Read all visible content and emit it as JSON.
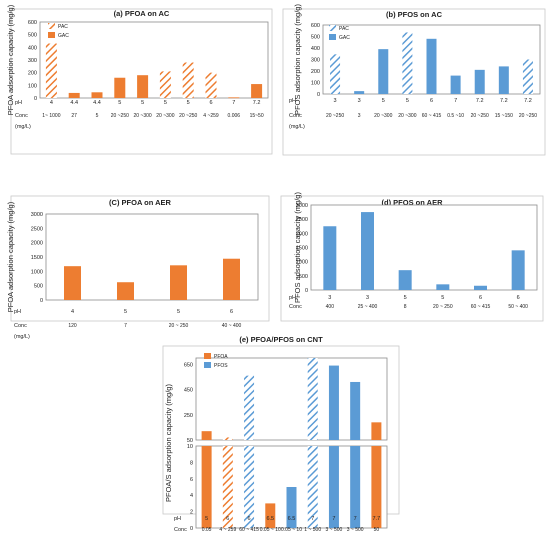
{
  "colors": {
    "orange": "#ED7D31",
    "blue": "#5B9BD5",
    "frame": "#8c8c8c",
    "text": "#222222"
  },
  "labels": {
    "ph": "pH",
    "conc": "Conc",
    "unit": "(mg/L)"
  },
  "chart_data": [
    {
      "id": "a",
      "type": "bar",
      "title": "(a) PFOA on AC",
      "ylabel": "PFOA adsorption capacity (mg/g)",
      "ylim": [
        0,
        600
      ],
      "yticks": [
        "0",
        "100",
        "200",
        "300",
        "400",
        "500",
        "600"
      ],
      "legend": [
        {
          "name": "PAC",
          "pattern": "hatch-orange"
        },
        {
          "name": "GAC",
          "pattern": "solid-orange"
        }
      ],
      "legend_position": "top-left",
      "bars": [
        {
          "ph": "4",
          "conc": "1~ 1000",
          "value": 430,
          "style": "hatch-orange"
        },
        {
          "ph": "4.4",
          "conc": "27",
          "value": 40,
          "style": "solid-orange"
        },
        {
          "ph": "4.4",
          "conc": "5",
          "value": 45,
          "style": "solid-orange"
        },
        {
          "ph": "5",
          "conc": "20 ~250",
          "value": 160,
          "style": "solid-orange"
        },
        {
          "ph": "5",
          "conc": "20 ~300",
          "value": 180,
          "style": "solid-orange"
        },
        {
          "ph": "5",
          "conc": "20 ~300",
          "value": 210,
          "style": "hatch-orange"
        },
        {
          "ph": "5",
          "conc": "20 ~250",
          "value": 280,
          "style": "hatch-orange"
        },
        {
          "ph": "6",
          "conc": "4 ~259",
          "value": 200,
          "style": "hatch-orange"
        },
        {
          "ph": "7",
          "conc": "0.006",
          "value": 5,
          "style": "solid-orange"
        },
        {
          "ph": "7.2",
          "conc": "15~50",
          "value": 110,
          "style": "solid-orange"
        }
      ]
    },
    {
      "id": "b",
      "type": "bar",
      "title": "(b) PFOS on AC",
      "ylabel": "PFOS adsorption capacity (mg/g)",
      "ylim": [
        0,
        600
      ],
      "yticks": [
        "0",
        "100",
        "200",
        "300",
        "400",
        "500",
        "600"
      ],
      "legend": [
        {
          "name": "PAC",
          "pattern": "hatch-blue"
        },
        {
          "name": "GAC",
          "pattern": "solid-blue"
        }
      ],
      "legend_position": "top-left",
      "bars": [
        {
          "ph": "3",
          "conc": "20 ~250",
          "value": 345,
          "style": "hatch-blue"
        },
        {
          "ph": "3",
          "conc": "3",
          "value": 25,
          "style": "solid-blue"
        },
        {
          "ph": "5",
          "conc": "20 ~300",
          "value": 390,
          "style": "solid-blue"
        },
        {
          "ph": "5",
          "conc": "20 ~300",
          "value": 535,
          "style": "hatch-blue"
        },
        {
          "ph": "6",
          "conc": "60 ~ 415",
          "value": 480,
          "style": "solid-blue"
        },
        {
          "ph": "7",
          "conc": "0.5 ~10",
          "value": 160,
          "style": "solid-blue"
        },
        {
          "ph": "7.2",
          "conc": "20 ~250",
          "value": 210,
          "style": "solid-blue"
        },
        {
          "ph": "7.2",
          "conc": "15 ~150",
          "value": 240,
          "style": "solid-blue"
        },
        {
          "ph": "7.2",
          "conc": "20 ~250",
          "value": 300,
          "style": "hatch-blue"
        }
      ]
    },
    {
      "id": "c",
      "type": "bar",
      "title": "(C) PFOA on AER",
      "ylabel": "PFOA adsorption capacity (mg/g)",
      "ylim": [
        0,
        3000
      ],
      "yticks": [
        "0",
        "500",
        "1000",
        "1500",
        "2000",
        "2500",
        "3000"
      ],
      "bars": [
        {
          "ph": "4",
          "conc": "120",
          "value": 1180,
          "style": "solid-orange"
        },
        {
          "ph": "5",
          "conc": "7",
          "value": 620,
          "style": "solid-orange"
        },
        {
          "ph": "5",
          "conc": "20 ~ 250",
          "value": 1210,
          "style": "solid-orange"
        },
        {
          "ph": "6",
          "conc": "40 ~ 400",
          "value": 1440,
          "style": "solid-orange"
        }
      ]
    },
    {
      "id": "d",
      "type": "bar",
      "title": "(d) PFOS on AER",
      "ylabel": "PFOS adsorption capacity (mg/g)",
      "ylim": [
        0,
        3000
      ],
      "yticks": [
        "0",
        "500",
        "1000",
        "1500",
        "2000",
        "2500",
        "3000"
      ],
      "bars": [
        {
          "ph": "3",
          "conc": "400",
          "value": 2250,
          "style": "solid-blue"
        },
        {
          "ph": "3",
          "conc": "25 ~ 400",
          "value": 2750,
          "style": "solid-blue"
        },
        {
          "ph": "5",
          "conc": "8",
          "value": 700,
          "style": "solid-blue"
        },
        {
          "ph": "5",
          "conc": "20 ~ 250",
          "value": 200,
          "style": "solid-blue"
        },
        {
          "ph": "6",
          "conc": "60 ~ 415",
          "value": 150,
          "style": "solid-blue"
        },
        {
          "ph": "6",
          "conc": "50 ~ 400",
          "value": 1400,
          "style": "solid-blue"
        }
      ]
    },
    {
      "id": "e",
      "type": "bar",
      "title": "(e) PFOA/PFOS on CNT",
      "ylabel": "PFOA/S adsorption capacity (mg/g)",
      "broken_axis": true,
      "upper_ylim": [
        50,
        700
      ],
      "upper_yticks": [
        "50",
        "250",
        "450",
        "650"
      ],
      "lower_ylim": [
        0,
        10
      ],
      "lower_yticks": [
        "0",
        "2",
        "4",
        "6",
        "8",
        "10"
      ],
      "legend": [
        {
          "name": "PFOA",
          "pattern": "solid-orange"
        },
        {
          "name": "PFOS",
          "pattern": "solid-blue"
        }
      ],
      "legend_position": "top-left",
      "bars": [
        {
          "ph": "5",
          "conc": "0.05",
          "value": 120,
          "style": "solid-orange"
        },
        {
          "ph": "6",
          "conc": "4 ~ 259",
          "value": 70,
          "style": "hatch-orange"
        },
        {
          "ph": "6",
          "conc": "60 ~ 415",
          "value": 560,
          "style": "hatch-blue"
        },
        {
          "ph": "6.5",
          "conc": "0.05 ~ 10",
          "value": 3,
          "style": "solid-orange"
        },
        {
          "ph": "6.5",
          "conc": "0.05 ~ 10",
          "value": 5,
          "style": "solid-blue"
        },
        {
          "ph": "7",
          "conc": "1 ~ 500",
          "value": 700,
          "style": "hatch-blue"
        },
        {
          "ph": "7",
          "conc": "3 ~ 500",
          "value": 640,
          "style": "solid-blue"
        },
        {
          "ph": "7",
          "conc": "3 ~ 500",
          "value": 510,
          "style": "solid-blue"
        },
        {
          "ph": "7.7",
          "conc": "50",
          "value": 190,
          "style": "solid-orange"
        }
      ]
    }
  ]
}
